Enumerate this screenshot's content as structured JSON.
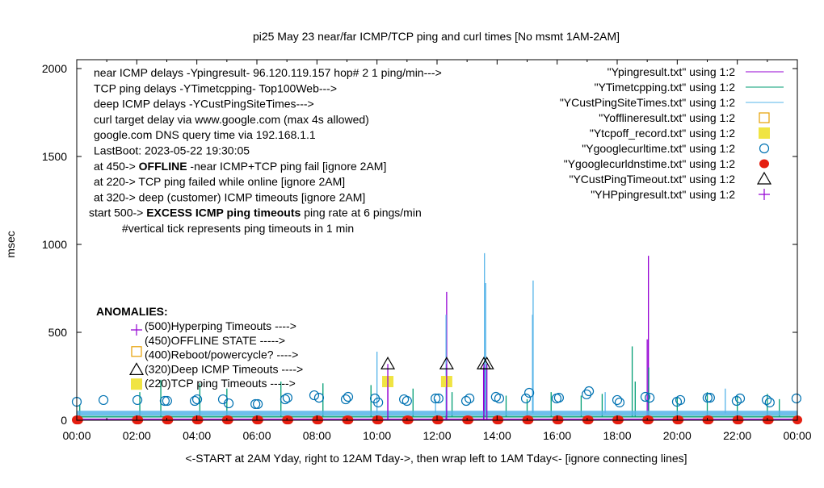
{
  "chart_data": {
    "type": "line",
    "title": "pi25 May 23  near/far ICMP/TCP ping and curl times [No msmt 1AM-2AM]",
    "xlabel": "<-START at 2AM Yday, right to 12AM Tday->, then wrap left to 1AM Tday<- [ignore connecting lines]",
    "ylabel": "msec",
    "xlim": [
      0,
      24
    ],
    "ylim": [
      0,
      2000
    ],
    "grid": false,
    "legend_position": "top-right",
    "x_ticks": [
      "00:00",
      "02:00",
      "04:00",
      "06:00",
      "08:00",
      "10:00",
      "12:00",
      "14:00",
      "16:00",
      "18:00",
      "20:00",
      "22:00",
      "00:00"
    ],
    "y_ticks": [
      "0",
      "500",
      "1000",
      "1500",
      "2000"
    ],
    "y_tick_values": [
      0,
      500,
      1000,
      1500,
      2000
    ],
    "info_lines": [
      [
        "near ICMP delays -Ypingresult- 96.120.119.157 hop# 2 1 ping/min--->"
      ],
      [
        "TCP ping delays -YTimetcpping- Top100Web--->"
      ],
      [
        "deep ICMP delays -YCustPingSiteTimes--->"
      ],
      [
        "curl target delay via www.google.com (max 4s allowed)"
      ],
      [
        "google.com DNS query time via 192.168.1.1"
      ],
      [
        "LastBoot: 2023-05-22 19:30:05"
      ],
      [
        "at 450-> ",
        "OFFLINE",
        " -near ICMP+TCP ping fail [ignore 2AM]"
      ],
      [
        "at 220-> TCP ping failed while online [ignore 2AM]"
      ],
      [
        "at 320-> deep (customer) ICMP timeouts [ignore 2AM]"
      ],
      [
        "start 500-> ",
        "EXCESS ICMP ping timeouts",
        "  ping rate at 6 pings/min"
      ],
      [
        "#vertical tick represents ping timeouts in 1 min"
      ]
    ],
    "anomalies": {
      "title": "ANOMALIES:",
      "items": [
        {
          "label": "(500)Hyperping Timeouts ---->",
          "marker": "plus",
          "color": "#9400d3"
        },
        {
          "label": "(450)OFFLINE STATE ----->",
          "marker": "open-square",
          "color": "#e69f00"
        },
        {
          "label": "(400)Reboot/powercycle? ---->",
          "marker": "none",
          "color": "#000000"
        },
        {
          "label": "(320)Deep ICMP Timeouts ---->",
          "marker": "open-triangle",
          "color": "#000000"
        },
        {
          "label": "(220)TCP ping Timeouts ----->",
          "marker": "filled-square",
          "color": "#f0e442"
        }
      ]
    },
    "series": [
      {
        "name": "\"Ypingresult.txt\" using 1:2",
        "style": "line",
        "color": "#9400d3",
        "baseline": 5,
        "points": [
          [
            10.36,
            190
          ],
          [
            12.3,
            420
          ],
          [
            12.32,
            730
          ],
          [
            13.55,
            300
          ],
          [
            19.0,
            460
          ],
          [
            19.04,
            935
          ]
        ]
      },
      {
        "name": "\"YTimetcpping.txt\" using 1:2",
        "style": "line",
        "color": "#009e73",
        "baseline": 20,
        "points": [
          [
            0.1,
            90
          ],
          [
            2.1,
            160
          ],
          [
            2.8,
            230
          ],
          [
            4.1,
            210
          ],
          [
            5.0,
            180
          ],
          [
            6.8,
            220
          ],
          [
            8.2,
            210
          ],
          [
            9.8,
            200
          ],
          [
            11.2,
            180
          ],
          [
            12.5,
            160
          ],
          [
            13.6,
            300
          ],
          [
            14.3,
            140
          ],
          [
            15.0,
            120
          ],
          [
            15.8,
            160
          ],
          [
            16.8,
            140
          ],
          [
            17.5,
            150
          ],
          [
            18.5,
            420
          ],
          [
            18.6,
            220
          ],
          [
            19.05,
            300
          ],
          [
            20.0,
            130
          ],
          [
            21.0,
            160
          ],
          [
            22.0,
            140
          ],
          [
            23.0,
            150
          ],
          [
            23.4,
            120
          ]
        ]
      },
      {
        "name": "\"YCustPingSiteTimes.txt\" using 1:2",
        "style": "line",
        "color": "#56b4e9",
        "baseline": 40,
        "points": [
          [
            10.0,
            390
          ],
          [
            11.95,
            120
          ],
          [
            12.3,
            600
          ],
          [
            13.58,
            950
          ],
          [
            13.62,
            780
          ],
          [
            15.18,
            600
          ],
          [
            15.2,
            795
          ],
          [
            17.6,
            160
          ],
          [
            21.6,
            180
          ]
        ]
      },
      {
        "name": "\"Yofflineresult.txt\" using 1:2",
        "style": "open-square",
        "color": "#e69f00",
        "points": []
      },
      {
        "name": "\"Ytcpoff_record.txt\" using 1:2",
        "style": "filled-square",
        "color": "#f0e442",
        "points": [
          [
            10.36,
            220
          ],
          [
            12.32,
            220
          ]
        ]
      },
      {
        "name": "\"Ygooglecurltime.txt\" using 1:2",
        "style": "open-circle",
        "color": "#0072b2",
        "points": [
          [
            0,
            105
          ],
          [
            0.89,
            115
          ],
          [
            2.02,
            115
          ],
          [
            2.93,
            110
          ],
          [
            3.01,
            110
          ],
          [
            3.93,
            110
          ],
          [
            4.01,
            119
          ],
          [
            4.87,
            119
          ],
          [
            5.06,
            96
          ],
          [
            5.95,
            92
          ],
          [
            6.03,
            92
          ],
          [
            6.94,
            119
          ],
          [
            7.02,
            128
          ],
          [
            7.91,
            142
          ],
          [
            8.07,
            128
          ],
          [
            8.96,
            119
          ],
          [
            9.04,
            133
          ],
          [
            9.93,
            124
          ],
          [
            10.04,
            101
          ],
          [
            10.9,
            119
          ],
          [
            11.0,
            110
          ],
          [
            11.95,
            124
          ],
          [
            12.05,
            124
          ],
          [
            12.97,
            110
          ],
          [
            13.08,
            124
          ],
          [
            13.96,
            133
          ],
          [
            14.07,
            124
          ],
          [
            14.96,
            124
          ],
          [
            15.07,
            156
          ],
          [
            15.98,
            124
          ],
          [
            16.06,
            128
          ],
          [
            16.98,
            147
          ],
          [
            17.06,
            165
          ],
          [
            18.0,
            115
          ],
          [
            18.08,
            101
          ],
          [
            18.94,
            133
          ],
          [
            19.08,
            128
          ],
          [
            19.99,
            105
          ],
          [
            20.1,
            115
          ],
          [
            21.01,
            128
          ],
          [
            21.09,
            128
          ],
          [
            21.98,
            110
          ],
          [
            22.09,
            124
          ],
          [
            22.98,
            115
          ],
          [
            23.08,
            101
          ],
          [
            23.97,
            124
          ]
        ]
      },
      {
        "name": "\"Ygooglecurldnstime.txt\" using 1:2",
        "style": "filled-circle",
        "color": "#e51e10",
        "points": [
          [
            0,
            2
          ],
          [
            0.05,
            2
          ],
          [
            2,
            2
          ],
          [
            2.05,
            2
          ],
          [
            3,
            2
          ],
          [
            3.05,
            2
          ],
          [
            4,
            2
          ],
          [
            4.05,
            2
          ],
          [
            5,
            2
          ],
          [
            5.05,
            2
          ],
          [
            6,
            2
          ],
          [
            6.05,
            2
          ],
          [
            7,
            2
          ],
          [
            7.05,
            2
          ],
          [
            8,
            2
          ],
          [
            8.05,
            2
          ],
          [
            9,
            2
          ],
          [
            9.05,
            2
          ],
          [
            10,
            2
          ],
          [
            10.05,
            2
          ],
          [
            11,
            2
          ],
          [
            11.05,
            2
          ],
          [
            12,
            2
          ],
          [
            12.05,
            2
          ],
          [
            13,
            2
          ],
          [
            13.05,
            2
          ],
          [
            14,
            2
          ],
          [
            14.05,
            2
          ],
          [
            15,
            2
          ],
          [
            15.05,
            2
          ],
          [
            16,
            2
          ],
          [
            16.05,
            2
          ],
          [
            17,
            2
          ],
          [
            17.05,
            2
          ],
          [
            18,
            2
          ],
          [
            18.05,
            2
          ],
          [
            19,
            2
          ],
          [
            19.05,
            2
          ],
          [
            20,
            2
          ],
          [
            20.05,
            2
          ],
          [
            21,
            2
          ],
          [
            21.05,
            2
          ],
          [
            22,
            2
          ],
          [
            22.05,
            2
          ],
          [
            23,
            2
          ],
          [
            23.05,
            2
          ],
          [
            24,
            2
          ]
        ]
      },
      {
        "name": "\"YCustPingTimeout.txt\" using 1:2",
        "style": "open-triangle",
        "color": "#000000",
        "points": [
          [
            10.36,
            320
          ],
          [
            12.32,
            320
          ],
          [
            13.56,
            320
          ],
          [
            13.66,
            320
          ]
        ]
      },
      {
        "name": "\"YHPpingresult.txt\" using 1:2",
        "style": "plus",
        "color": "#9400d3",
        "points": []
      }
    ]
  }
}
